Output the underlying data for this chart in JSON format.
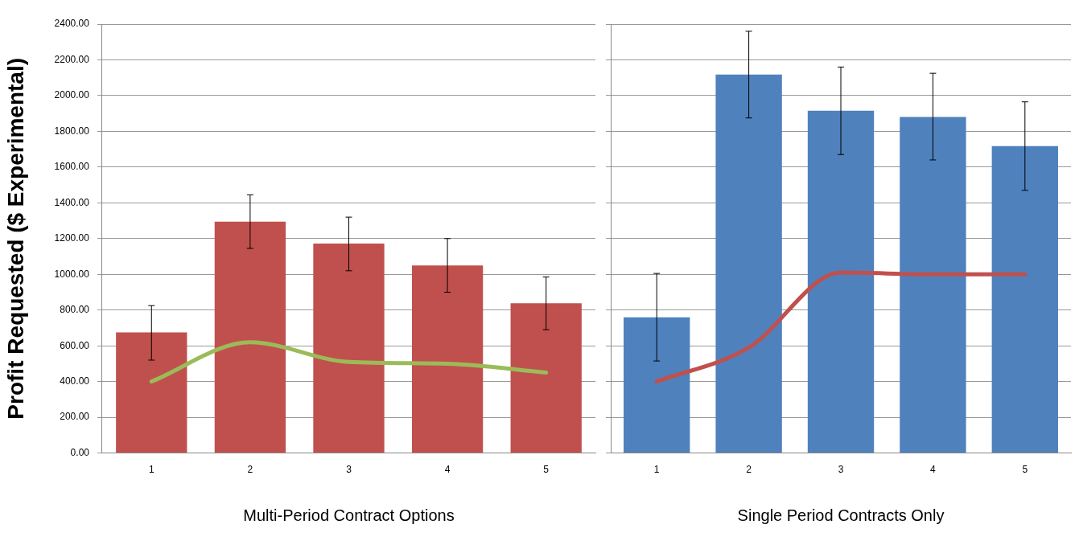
{
  "chart_data": [
    {
      "type": "bar",
      "xlabel": "Multi-Period Contract Options",
      "ylabel": "Profit Requested ($ Experimental)",
      "categories": [
        "1",
        "2",
        "3",
        "4",
        "5"
      ],
      "series": [
        {
          "color": "#c0504d",
          "values": [
            675,
            1295,
            1172,
            1050,
            838
          ],
          "errors": [
            [
              520,
              825
            ],
            [
              1145,
              1445
            ],
            [
              1020,
              1320
            ],
            [
              900,
              1200
            ],
            [
              690,
              985
            ]
          ]
        },
        {
          "type": "line",
          "color": "#9bbb59",
          "values": [
            400,
            620,
            510,
            500,
            450
          ]
        }
      ],
      "ylim": [
        0,
        2400
      ],
      "yticks": [
        {
          "value": 0,
          "label": "0.00"
        },
        {
          "value": 200,
          "label": "200.00"
        },
        {
          "value": 400,
          "label": "400.00"
        },
        {
          "value": 600,
          "label": "600.00"
        },
        {
          "value": 800,
          "label": "800.00"
        },
        {
          "value": 1000,
          "label": "1000.00"
        },
        {
          "value": 1200,
          "label": "1200.00"
        },
        {
          "value": 1400,
          "label": "1400.00"
        },
        {
          "value": 1600,
          "label": "1600.00"
        },
        {
          "value": 1800,
          "label": "1800.00"
        },
        {
          "value": 2000,
          "label": "2000.00"
        },
        {
          "value": 2200,
          "label": "2200.00"
        },
        {
          "value": 2400,
          "label": "2400.00"
        }
      ],
      "grid": "y",
      "legend": false
    },
    {
      "type": "bar",
      "xlabel": "Single Period Contracts Only",
      "categories": [
        "1",
        "2",
        "3",
        "4",
        "5"
      ],
      "series": [
        {
          "color": "#4f81bd",
          "values": [
            760,
            2118,
            1915,
            1880,
            1718
          ],
          "errors": [
            [
              515,
              1005
            ],
            [
              1875,
              2360
            ],
            [
              1670,
              2160
            ],
            [
              1640,
              2125
            ],
            [
              1470,
              1965
            ]
          ]
        },
        {
          "type": "line",
          "color": "#c0504d",
          "values": [
            400,
            590,
            1010,
            1000,
            1000
          ]
        }
      ],
      "ylim": [
        0,
        2400
      ],
      "yticks": [
        0,
        200,
        400,
        600,
        800,
        1000,
        1200,
        1400,
        1600,
        1800,
        2000,
        2200,
        2400
      ],
      "tick_labels": "x",
      "grid": "y",
      "legend": false
    }
  ]
}
